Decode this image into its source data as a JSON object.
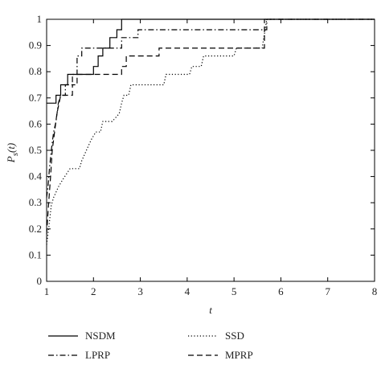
{
  "chart_data": {
    "type": "line",
    "xlabel": "t",
    "ylabel": "P_s(t)",
    "xlim": [
      1,
      8
    ],
    "ylim": [
      0,
      1
    ],
    "xticks": [
      1,
      2,
      3,
      4,
      5,
      6,
      7,
      8
    ],
    "yticks": [
      0,
      0.1,
      0.2,
      0.3,
      0.4,
      0.5,
      0.6,
      0.7,
      0.8,
      0.9,
      1
    ],
    "grid": false,
    "legend_placement": "bottom, two columns",
    "series": [
      {
        "name": "NSDM",
        "style": "solid",
        "color": "#000000",
        "points": [
          [
            1,
            0.68
          ],
          [
            1.2,
            0.68
          ],
          [
            1.2,
            0.71
          ],
          [
            1.3,
            0.71
          ],
          [
            1.3,
            0.75
          ],
          [
            1.45,
            0.75
          ],
          [
            1.45,
            0.79
          ],
          [
            2,
            0.79
          ],
          [
            2,
            0.82
          ],
          [
            2.1,
            0.82
          ],
          [
            2.1,
            0.86
          ],
          [
            2.2,
            0.86
          ],
          [
            2.2,
            0.89
          ],
          [
            2.35,
            0.89
          ],
          [
            2.35,
            0.93
          ],
          [
            2.5,
            0.93
          ],
          [
            2.5,
            0.96
          ],
          [
            2.6,
            0.96
          ],
          [
            2.6,
            1.0
          ],
          [
            8,
            1.0
          ]
        ]
      },
      {
        "name": "LPRP",
        "style": "dashdot",
        "color": "#000000",
        "points": [
          [
            1,
            0.32
          ],
          [
            1.03,
            0.36
          ],
          [
            1.06,
            0.43
          ],
          [
            1.1,
            0.5
          ],
          [
            1.15,
            0.57
          ],
          [
            1.2,
            0.61
          ],
          [
            1.25,
            0.68
          ],
          [
            1.3,
            0.71
          ],
          [
            1.4,
            0.71
          ],
          [
            1.4,
            0.75
          ],
          [
            1.55,
            0.75
          ],
          [
            1.55,
            0.79
          ],
          [
            1.65,
            0.79
          ],
          [
            1.65,
            0.86
          ],
          [
            1.75,
            0.86
          ],
          [
            1.75,
            0.89
          ],
          [
            2.6,
            0.89
          ],
          [
            2.6,
            0.93
          ],
          [
            2.95,
            0.93
          ],
          [
            2.95,
            0.96
          ],
          [
            5.7,
            0.96
          ],
          [
            5.7,
            1.0
          ],
          [
            8,
            1.0
          ]
        ]
      },
      {
        "name": "SSD",
        "style": "dotted",
        "color": "#000000",
        "points": [
          [
            1,
            0.14
          ],
          [
            1.05,
            0.21
          ],
          [
            1.1,
            0.29
          ],
          [
            1.15,
            0.32
          ],
          [
            1.25,
            0.36
          ],
          [
            1.35,
            0.39
          ],
          [
            1.5,
            0.43
          ],
          [
            1.7,
            0.43
          ],
          [
            1.75,
            0.46
          ],
          [
            1.85,
            0.5
          ],
          [
            1.95,
            0.54
          ],
          [
            2.05,
            0.57
          ],
          [
            2.15,
            0.57
          ],
          [
            2.2,
            0.61
          ],
          [
            2.4,
            0.61
          ],
          [
            2.55,
            0.64
          ],
          [
            2.6,
            0.68
          ],
          [
            2.65,
            0.71
          ],
          [
            2.75,
            0.71
          ],
          [
            2.8,
            0.75
          ],
          [
            3.5,
            0.75
          ],
          [
            3.55,
            0.79
          ],
          [
            4.05,
            0.79
          ],
          [
            4.1,
            0.82
          ],
          [
            4.3,
            0.82
          ],
          [
            4.35,
            0.86
          ],
          [
            4.4,
            0.86
          ],
          [
            4.45,
            0.86
          ],
          [
            5.0,
            0.86
          ],
          [
            5.05,
            0.89
          ],
          [
            5.6,
            0.89
          ],
          [
            5.7,
            1.0
          ],
          [
            8,
            1.0
          ]
        ]
      },
      {
        "name": "MPRP",
        "style": "dashed",
        "color": "#000000",
        "points": [
          [
            1,
            0.18
          ],
          [
            1.04,
            0.29
          ],
          [
            1.08,
            0.39
          ],
          [
            1.12,
            0.5
          ],
          [
            1.17,
            0.57
          ],
          [
            1.22,
            0.64
          ],
          [
            1.3,
            0.71
          ],
          [
            1.55,
            0.71
          ],
          [
            1.55,
            0.75
          ],
          [
            1.65,
            0.75
          ],
          [
            1.65,
            0.79
          ],
          [
            2.6,
            0.79
          ],
          [
            2.6,
            0.82
          ],
          [
            2.7,
            0.82
          ],
          [
            2.7,
            0.86
          ],
          [
            3.4,
            0.86
          ],
          [
            3.4,
            0.89
          ],
          [
            5.65,
            0.89
          ],
          [
            5.65,
            1.0
          ],
          [
            8,
            1.0
          ]
        ]
      }
    ]
  }
}
